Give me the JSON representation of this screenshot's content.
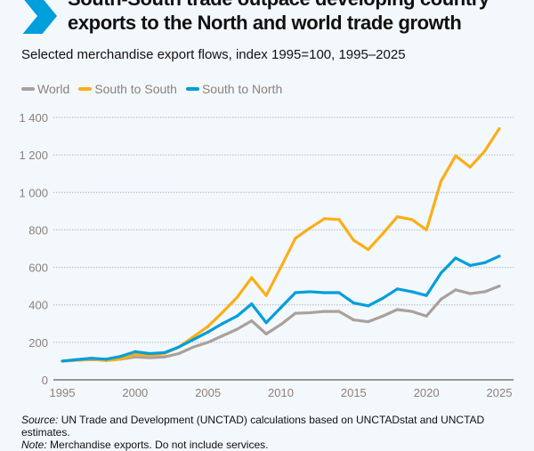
{
  "header": {
    "title": "South-South trade outpace developing country exports to the North and world trade growth",
    "subtitle": "Selected merchandise export flows, index 1995=100, 1995–2025"
  },
  "footer": {
    "source_label": "Source:",
    "source_text": " UN Trade and Development (UNCTAD) calculations based on UNCTADstat and UNCTAD estimates.",
    "note_label": "Note:",
    "note_text": " Merchandise exports. Do not include services."
  },
  "colors": {
    "accent": "#009edb",
    "background": "#f3f8fd"
  },
  "chart_data": {
    "type": "line",
    "title": "South-South trade outpace developing country exports to the North and world trade growth",
    "subtitle": "Selected merchandise export flows, index 1995=100, 1995–2025",
    "x": [
      1995,
      1996,
      1997,
      1998,
      1999,
      2000,
      2001,
      2002,
      2003,
      2004,
      2005,
      2006,
      2007,
      2008,
      2009,
      2010,
      2011,
      2012,
      2013,
      2014,
      2015,
      2016,
      2017,
      2018,
      2019,
      2020,
      2021,
      2022,
      2023,
      2024,
      2025
    ],
    "xlim": [
      1995,
      2025
    ],
    "ylim": [
      0,
      1400
    ],
    "xticks": [
      "1995",
      "2000",
      "2005",
      "2010",
      "2015",
      "2020",
      "2025"
    ],
    "yticks": [
      "0",
      "200",
      "400",
      "600",
      "800",
      "1 000",
      "1 200",
      "1 400"
    ],
    "grid": true,
    "legend": "top-left",
    "series": [
      {
        "name": "World",
        "color": "#aaa19c",
        "values": [
          100,
          105,
          108,
          106,
          110,
          122,
          118,
          122,
          140,
          175,
          200,
          235,
          270,
          315,
          245,
          295,
          355,
          358,
          365,
          365,
          320,
          310,
          340,
          375,
          365,
          340,
          430,
          480,
          460,
          470,
          500
        ]
      },
      {
        "name": "South to South",
        "color": "#fbae17",
        "values": [
          100,
          105,
          110,
          103,
          110,
          135,
          130,
          140,
          175,
          230,
          285,
          360,
          440,
          545,
          450,
          600,
          755,
          810,
          860,
          855,
          745,
          695,
          780,
          870,
          855,
          800,
          1060,
          1195,
          1135,
          1220,
          1340
        ]
      },
      {
        "name": "South to North",
        "color": "#009edb",
        "values": [
          100,
          108,
          115,
          110,
          125,
          150,
          140,
          145,
          175,
          215,
          255,
          300,
          340,
          405,
          305,
          385,
          465,
          470,
          465,
          465,
          410,
          395,
          435,
          485,
          470,
          450,
          570,
          650,
          610,
          625,
          660
        ]
      }
    ]
  }
}
